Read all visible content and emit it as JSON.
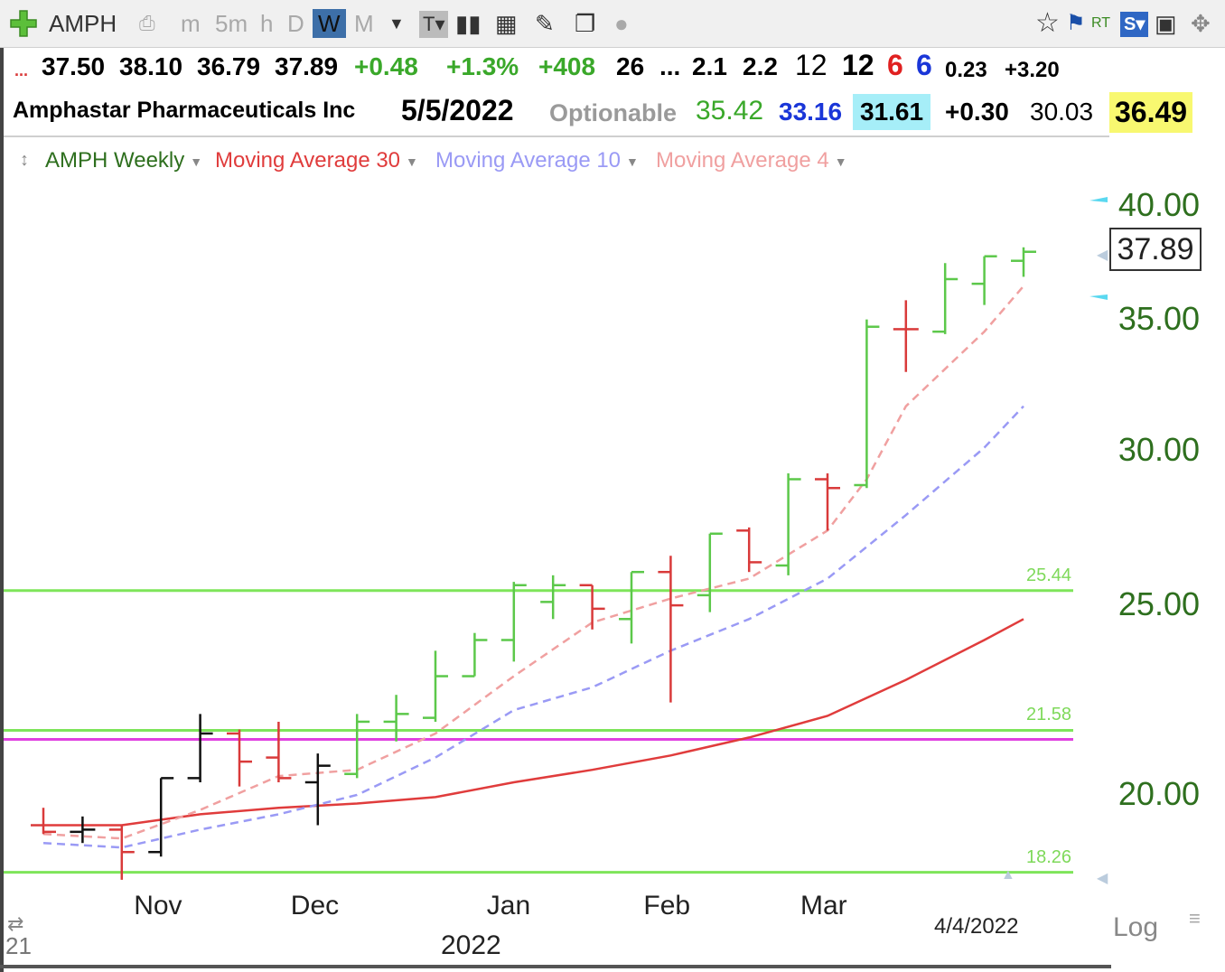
{
  "toolbar": {
    "symbol": "AMPH",
    "timeframes": [
      "m",
      "5m",
      "h",
      "D",
      "W",
      "M"
    ],
    "active_timeframe": "W",
    "rt_label": "RT"
  },
  "quote": {
    "dots": "...",
    "open": "37.50",
    "high": "38.10",
    "low": "36.79",
    "close": "37.89",
    "change": "+0.48",
    "change_pct": "+1.3%",
    "vol_change": "+408",
    "f1": "26",
    "f2": "...",
    "f3": "2.1",
    "f4": "2.2",
    "f5": "12",
    "f6": "12",
    "f7": "6",
    "f8": "6",
    "f9": "0.23",
    "f10": "+3.20"
  },
  "info": {
    "company": "Amphastar Pharmaceuticals Inc",
    "date": "5/5/2022",
    "optionable": "Optionable",
    "v1": "35.42",
    "v2": "33.16",
    "v3": "31.61",
    "v4": "+0.30",
    "v5": "30.03",
    "v6": "36.49"
  },
  "legend": {
    "series": "AMPH Weekly",
    "ma30": "Moving Average 30",
    "ma10": "Moving Average 10",
    "ma4": "Moving Average 4"
  },
  "colors": {
    "up": "#5cc84a",
    "down": "#d93a3a",
    "neutral": "#111111",
    "ma30": "#e03c3c",
    "ma10": "#9a9af5",
    "ma4": "#f0a0a0",
    "level": "#7ee55a",
    "magenta": "#e040e0",
    "axis_text": "#2e6f1e"
  },
  "chart_data": {
    "type": "line",
    "title": "AMPH Weekly",
    "y_scale": "log",
    "y_ticks": [
      "40.00",
      "35.00",
      "30.00",
      "25.00",
      "20.00"
    ],
    "y_tick_values": [
      40,
      35,
      30,
      25,
      20
    ],
    "x_month_labels": [
      "Nov",
      "Dec",
      "Jan",
      "Feb",
      "Mar"
    ],
    "x_month_weeks": [
      3,
      7,
      12,
      16,
      20
    ],
    "year_label": "2022",
    "year_week": 12,
    "last_bar_date": "4/4/2022",
    "partial_label": "21",
    "last_price_label": "37.89",
    "scale_label": "Log",
    "levels": [
      {
        "label": "25.44",
        "value": 25.44
      },
      {
        "label": "21.58",
        "value": 21.58
      },
      {
        "label": "18.26",
        "value": 18.26
      }
    ],
    "magenta_level": 21.35,
    "bars": [
      {
        "w": 0,
        "o": 19.3,
        "h": 19.7,
        "l": 19.1,
        "c": 19.15,
        "d": "down"
      },
      {
        "w": 1,
        "o": 19.15,
        "h": 19.5,
        "l": 18.9,
        "c": 19.2,
        "d": "neutral"
      },
      {
        "w": 2,
        "o": 19.2,
        "h": 19.3,
        "l": 18.1,
        "c": 18.7,
        "d": "down"
      },
      {
        "w": 3,
        "o": 18.7,
        "h": 20.4,
        "l": 18.6,
        "c": 20.4,
        "d": "neutral"
      },
      {
        "w": 4,
        "o": 20.4,
        "h": 22.0,
        "l": 20.3,
        "c": 21.5,
        "d": "neutral"
      },
      {
        "w": 5,
        "o": 21.5,
        "h": 21.6,
        "l": 20.2,
        "c": 20.8,
        "d": "down"
      },
      {
        "w": 6,
        "o": 20.9,
        "h": 21.8,
        "l": 20.3,
        "c": 20.4,
        "d": "down"
      },
      {
        "w": 7,
        "o": 20.3,
        "h": 21.0,
        "l": 19.3,
        "c": 20.7,
        "d": "neutral"
      },
      {
        "w": 8,
        "o": 20.5,
        "h": 22.0,
        "l": 20.4,
        "c": 21.8,
        "d": "up"
      },
      {
        "w": 9,
        "o": 21.8,
        "h": 22.5,
        "l": 21.3,
        "c": 22.0,
        "d": "up"
      },
      {
        "w": 10,
        "o": 21.9,
        "h": 23.7,
        "l": 21.8,
        "c": 23.0,
        "d": "up"
      },
      {
        "w": 11,
        "o": 23.0,
        "h": 24.2,
        "l": 23.0,
        "c": 24.0,
        "d": "up"
      },
      {
        "w": 12,
        "o": 24.0,
        "h": 25.7,
        "l": 23.4,
        "c": 25.6,
        "d": "up"
      },
      {
        "w": 13,
        "o": 25.1,
        "h": 25.9,
        "l": 24.6,
        "c": 25.6,
        "d": "up"
      },
      {
        "w": 14,
        "o": 25.6,
        "h": 25.6,
        "l": 24.3,
        "c": 24.9,
        "d": "down"
      },
      {
        "w": 15,
        "o": 24.6,
        "h": 26.0,
        "l": 23.9,
        "c": 26.0,
        "d": "up"
      },
      {
        "w": 16,
        "o": 26.0,
        "h": 26.5,
        "l": 22.3,
        "c": 25.0,
        "d": "down"
      },
      {
        "w": 17,
        "o": 25.3,
        "h": 27.2,
        "l": 24.8,
        "c": 27.2,
        "d": "up"
      },
      {
        "w": 18,
        "o": 27.3,
        "h": 27.4,
        "l": 26.0,
        "c": 26.3,
        "d": "down"
      },
      {
        "w": 19,
        "o": 26.2,
        "h": 29.2,
        "l": 25.9,
        "c": 29.0,
        "d": "up"
      },
      {
        "w": 20,
        "o": 29.0,
        "h": 29.2,
        "l": 27.3,
        "c": 28.7,
        "d": "down"
      },
      {
        "w": 21,
        "o": 28.8,
        "h": 35.0,
        "l": 28.7,
        "c": 34.7,
        "d": "up"
      },
      {
        "w": 22,
        "o": 34.6,
        "h": 35.8,
        "l": 32.9,
        "c": 34.6,
        "d": "down"
      },
      {
        "w": 23,
        "o": 34.5,
        "h": 37.4,
        "l": 34.4,
        "c": 36.7,
        "d": "up"
      },
      {
        "w": 24,
        "o": 36.5,
        "h": 37.7,
        "l": 35.6,
        "c": 37.7,
        "d": "up"
      },
      {
        "w": 25,
        "o": 37.5,
        "h": 38.1,
        "l": 36.8,
        "c": 37.9,
        "d": "up"
      }
    ],
    "ma30": [
      [
        0,
        19.3
      ],
      [
        2,
        19.3
      ],
      [
        4,
        19.55
      ],
      [
        6,
        19.7
      ],
      [
        8,
        19.8
      ],
      [
        10,
        19.95
      ],
      [
        12,
        20.3
      ],
      [
        14,
        20.6
      ],
      [
        16,
        20.95
      ],
      [
        18,
        21.4
      ],
      [
        20,
        21.95
      ],
      [
        22,
        22.9
      ],
      [
        24,
        24.0
      ],
      [
        25,
        24.6
      ]
    ],
    "ma10": [
      [
        0,
        18.9
      ],
      [
        2,
        18.8
      ],
      [
        4,
        19.2
      ],
      [
        6,
        19.55
      ],
      [
        8,
        20.0
      ],
      [
        10,
        20.9
      ],
      [
        12,
        22.1
      ],
      [
        14,
        22.7
      ],
      [
        16,
        23.7
      ],
      [
        18,
        24.6
      ],
      [
        20,
        25.8
      ],
      [
        22,
        27.8
      ],
      [
        24,
        30.1
      ],
      [
        25,
        31.6
      ]
    ],
    "ma4": [
      [
        0,
        19.1
      ],
      [
        2,
        19.0
      ],
      [
        4,
        19.65
      ],
      [
        6,
        20.45
      ],
      [
        8,
        20.6
      ],
      [
        10,
        21.5
      ],
      [
        12,
        23.0
      ],
      [
        14,
        24.5
      ],
      [
        16,
        25.2
      ],
      [
        18,
        25.8
      ],
      [
        20,
        27.3
      ],
      [
        21,
        29.0
      ],
      [
        22,
        31.6
      ],
      [
        24,
        34.5
      ],
      [
        25,
        36.4
      ]
    ]
  }
}
